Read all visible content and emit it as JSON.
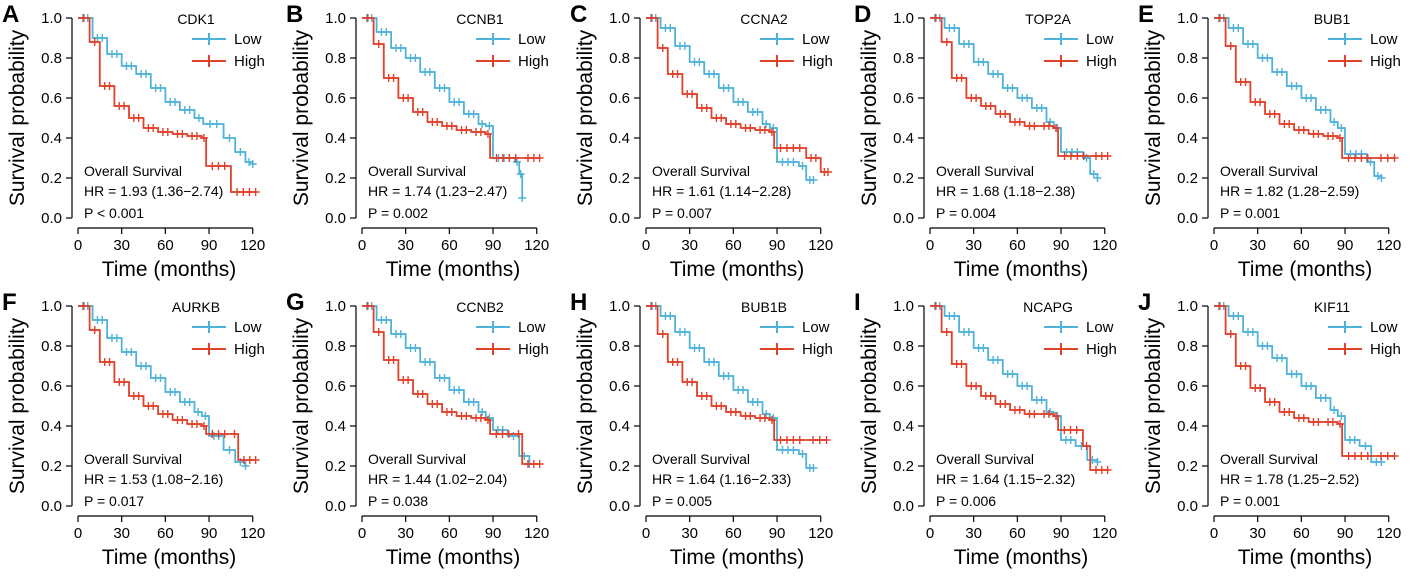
{
  "chart_data": {
    "type": "line",
    "shared": {
      "xlabel": "Time (months)",
      "ylabel": "Survival probability",
      "xticks": [
        0,
        30,
        60,
        90,
        120
      ],
      "yticks": [
        0.0,
        0.2,
        0.4,
        0.6,
        0.8,
        1.0
      ],
      "ytick_labels": [
        "0.0",
        "0.2",
        "0.4",
        "0.6",
        "0.8",
        "1.0"
      ],
      "xlim": [
        0,
        125
      ],
      "ylim": [
        0,
        1.0
      ],
      "legend": [
        "Low",
        "High"
      ],
      "colors": {
        "Low": "#4fb3d9",
        "High": "#e0412b"
      },
      "annotation_title": "Overall Survival"
    },
    "panels": [
      {
        "letter": "A",
        "gene": "CDK1",
        "hr": "HR = 1.93 (1.36−2.74)",
        "p": "P < 0.001",
        "low": [
          [
            0,
            1
          ],
          [
            10,
            0.9
          ],
          [
            20,
            0.82
          ],
          [
            30,
            0.76
          ],
          [
            40,
            0.72
          ],
          [
            50,
            0.65
          ],
          [
            60,
            0.58
          ],
          [
            70,
            0.54
          ],
          [
            80,
            0.5
          ],
          [
            86,
            0.47
          ],
          [
            100,
            0.4
          ],
          [
            108,
            0.33
          ],
          [
            115,
            0.28
          ],
          [
            120,
            0.27
          ]
        ],
        "high": [
          [
            0,
            1
          ],
          [
            8,
            0.88
          ],
          [
            15,
            0.66
          ],
          [
            25,
            0.56
          ],
          [
            35,
            0.5
          ],
          [
            45,
            0.45
          ],
          [
            55,
            0.43
          ],
          [
            65,
            0.42
          ],
          [
            75,
            0.41
          ],
          [
            85,
            0.4
          ],
          [
            88,
            0.26
          ],
          [
            105,
            0.13
          ],
          [
            122,
            0.13
          ]
        ]
      },
      {
        "letter": "B",
        "gene": "CCNB1",
        "hr": "HR = 1.74 (1.23−2.47)",
        "p": "P = 0.002",
        "low": [
          [
            0,
            1
          ],
          [
            10,
            0.93
          ],
          [
            20,
            0.85
          ],
          [
            30,
            0.8
          ],
          [
            40,
            0.73
          ],
          [
            50,
            0.65
          ],
          [
            60,
            0.58
          ],
          [
            70,
            0.52
          ],
          [
            80,
            0.47
          ],
          [
            85,
            0.46
          ],
          [
            90,
            0.3
          ],
          [
            105,
            0.28
          ],
          [
            108,
            0.22
          ],
          [
            110,
            0.1
          ]
        ],
        "high": [
          [
            0,
            1
          ],
          [
            8,
            0.87
          ],
          [
            15,
            0.7
          ],
          [
            25,
            0.6
          ],
          [
            35,
            0.53
          ],
          [
            45,
            0.48
          ],
          [
            55,
            0.46
          ],
          [
            65,
            0.44
          ],
          [
            75,
            0.43
          ],
          [
            85,
            0.42
          ],
          [
            88,
            0.3
          ],
          [
            110,
            0.3
          ],
          [
            122,
            0.3
          ]
        ]
      },
      {
        "letter": "C",
        "gene": "CCNA2",
        "hr": "HR = 1.61 (1.14−2.28)",
        "p": "P = 0.007",
        "low": [
          [
            0,
            1
          ],
          [
            10,
            0.95
          ],
          [
            20,
            0.86
          ],
          [
            30,
            0.78
          ],
          [
            40,
            0.72
          ],
          [
            50,
            0.65
          ],
          [
            60,
            0.58
          ],
          [
            70,
            0.53
          ],
          [
            80,
            0.47
          ],
          [
            85,
            0.45
          ],
          [
            90,
            0.28
          ],
          [
            105,
            0.26
          ],
          [
            110,
            0.19
          ],
          [
            115,
            0.19
          ]
        ],
        "high": [
          [
            0,
            1
          ],
          [
            8,
            0.85
          ],
          [
            15,
            0.72
          ],
          [
            25,
            0.62
          ],
          [
            35,
            0.55
          ],
          [
            45,
            0.5
          ],
          [
            55,
            0.47
          ],
          [
            65,
            0.45
          ],
          [
            75,
            0.44
          ],
          [
            85,
            0.43
          ],
          [
            88,
            0.35
          ],
          [
            110,
            0.3
          ],
          [
            120,
            0.23
          ],
          [
            125,
            0.23
          ]
        ]
      },
      {
        "letter": "D",
        "gene": "TOP2A",
        "hr": "HR = 1.68 (1.18−2.38)",
        "p": "P = 0.004",
        "low": [
          [
            0,
            1
          ],
          [
            10,
            0.95
          ],
          [
            20,
            0.87
          ],
          [
            30,
            0.78
          ],
          [
            40,
            0.72
          ],
          [
            50,
            0.65
          ],
          [
            60,
            0.6
          ],
          [
            70,
            0.55
          ],
          [
            80,
            0.48
          ],
          [
            85,
            0.45
          ],
          [
            90,
            0.33
          ],
          [
            105,
            0.3
          ],
          [
            110,
            0.22
          ],
          [
            115,
            0.2
          ]
        ],
        "high": [
          [
            0,
            1
          ],
          [
            8,
            0.88
          ],
          [
            15,
            0.7
          ],
          [
            25,
            0.6
          ],
          [
            35,
            0.56
          ],
          [
            45,
            0.52
          ],
          [
            55,
            0.48
          ],
          [
            65,
            0.46
          ],
          [
            75,
            0.46
          ],
          [
            85,
            0.45
          ],
          [
            88,
            0.31
          ],
          [
            110,
            0.31
          ],
          [
            122,
            0.31
          ]
        ]
      },
      {
        "letter": "E",
        "gene": "BUB1",
        "hr": "HR = 1.82 (1.28−2.59)",
        "p": "P = 0.001",
        "low": [
          [
            0,
            1
          ],
          [
            10,
            0.95
          ],
          [
            20,
            0.87
          ],
          [
            30,
            0.8
          ],
          [
            40,
            0.73
          ],
          [
            50,
            0.66
          ],
          [
            60,
            0.6
          ],
          [
            70,
            0.54
          ],
          [
            80,
            0.48
          ],
          [
            85,
            0.45
          ],
          [
            90,
            0.32
          ],
          [
            105,
            0.28
          ],
          [
            110,
            0.21
          ],
          [
            115,
            0.2
          ]
        ],
        "high": [
          [
            0,
            1
          ],
          [
            8,
            0.86
          ],
          [
            15,
            0.68
          ],
          [
            25,
            0.58
          ],
          [
            35,
            0.52
          ],
          [
            45,
            0.47
          ],
          [
            55,
            0.44
          ],
          [
            65,
            0.42
          ],
          [
            75,
            0.41
          ],
          [
            85,
            0.4
          ],
          [
            88,
            0.3
          ],
          [
            110,
            0.3
          ],
          [
            124,
            0.3
          ]
        ]
      },
      {
        "letter": "F",
        "gene": "AURKB",
        "hr": "HR = 1.53 (1.08−2.16)",
        "p": "P = 0.017",
        "low": [
          [
            0,
            1
          ],
          [
            10,
            0.93
          ],
          [
            20,
            0.84
          ],
          [
            30,
            0.77
          ],
          [
            40,
            0.7
          ],
          [
            50,
            0.64
          ],
          [
            60,
            0.57
          ],
          [
            70,
            0.52
          ],
          [
            80,
            0.47
          ],
          [
            85,
            0.45
          ],
          [
            90,
            0.35
          ],
          [
            100,
            0.28
          ],
          [
            108,
            0.22
          ],
          [
            115,
            0.2
          ]
        ],
        "high": [
          [
            0,
            1
          ],
          [
            8,
            0.88
          ],
          [
            15,
            0.72
          ],
          [
            25,
            0.62
          ],
          [
            35,
            0.55
          ],
          [
            45,
            0.5
          ],
          [
            55,
            0.46
          ],
          [
            65,
            0.43
          ],
          [
            75,
            0.41
          ],
          [
            85,
            0.4
          ],
          [
            88,
            0.36
          ],
          [
            105,
            0.36
          ],
          [
            110,
            0.23
          ],
          [
            122,
            0.23
          ]
        ]
      },
      {
        "letter": "G",
        "gene": "CCNB2",
        "hr": "HR = 1.44 (1.02−2.04)",
        "p": "P = 0.038",
        "low": [
          [
            0,
            1
          ],
          [
            10,
            0.93
          ],
          [
            20,
            0.86
          ],
          [
            30,
            0.79
          ],
          [
            40,
            0.72
          ],
          [
            50,
            0.64
          ],
          [
            60,
            0.58
          ],
          [
            70,
            0.52
          ],
          [
            80,
            0.47
          ],
          [
            85,
            0.44
          ],
          [
            90,
            0.38
          ],
          [
            100,
            0.35
          ],
          [
            108,
            0.25
          ],
          [
            115,
            0.21
          ]
        ],
        "high": [
          [
            0,
            1
          ],
          [
            8,
            0.87
          ],
          [
            15,
            0.73
          ],
          [
            25,
            0.63
          ],
          [
            35,
            0.56
          ],
          [
            45,
            0.51
          ],
          [
            55,
            0.47
          ],
          [
            65,
            0.45
          ],
          [
            75,
            0.44
          ],
          [
            85,
            0.43
          ],
          [
            88,
            0.36
          ],
          [
            105,
            0.36
          ],
          [
            110,
            0.21
          ],
          [
            122,
            0.21
          ]
        ]
      },
      {
        "letter": "H",
        "gene": "BUB1B",
        "hr": "HR = 1.64 (1.16−2.33)",
        "p": "P = 0.005",
        "low": [
          [
            0,
            1
          ],
          [
            10,
            0.95
          ],
          [
            20,
            0.87
          ],
          [
            30,
            0.79
          ],
          [
            40,
            0.72
          ],
          [
            50,
            0.65
          ],
          [
            60,
            0.58
          ],
          [
            70,
            0.52
          ],
          [
            80,
            0.46
          ],
          [
            85,
            0.44
          ],
          [
            90,
            0.28
          ],
          [
            105,
            0.26
          ],
          [
            110,
            0.19
          ],
          [
            115,
            0.19
          ]
        ],
        "high": [
          [
            0,
            1
          ],
          [
            8,
            0.86
          ],
          [
            15,
            0.72
          ],
          [
            25,
            0.62
          ],
          [
            35,
            0.55
          ],
          [
            45,
            0.5
          ],
          [
            55,
            0.47
          ],
          [
            65,
            0.45
          ],
          [
            75,
            0.44
          ],
          [
            85,
            0.43
          ],
          [
            88,
            0.33
          ],
          [
            110,
            0.33
          ],
          [
            124,
            0.33
          ]
        ]
      },
      {
        "letter": "I",
        "gene": "NCAPG",
        "hr": "HR = 1.64 (1.15−2.32)",
        "p": "P = 0.006",
        "low": [
          [
            0,
            1
          ],
          [
            10,
            0.95
          ],
          [
            20,
            0.87
          ],
          [
            30,
            0.79
          ],
          [
            40,
            0.73
          ],
          [
            50,
            0.66
          ],
          [
            60,
            0.6
          ],
          [
            70,
            0.53
          ],
          [
            80,
            0.47
          ],
          [
            85,
            0.45
          ],
          [
            90,
            0.33
          ],
          [
            100,
            0.3
          ],
          [
            108,
            0.23
          ],
          [
            115,
            0.22
          ]
        ],
        "high": [
          [
            0,
            1
          ],
          [
            8,
            0.87
          ],
          [
            15,
            0.71
          ],
          [
            25,
            0.6
          ],
          [
            35,
            0.55
          ],
          [
            45,
            0.51
          ],
          [
            55,
            0.48
          ],
          [
            65,
            0.46
          ],
          [
            75,
            0.46
          ],
          [
            85,
            0.45
          ],
          [
            88,
            0.38
          ],
          [
            105,
            0.3
          ],
          [
            110,
            0.18
          ],
          [
            122,
            0.18
          ]
        ]
      },
      {
        "letter": "J",
        "gene": "KIF11",
        "hr": "HR = 1.78 (1.25−2.52)",
        "p": "P = 0.001",
        "low": [
          [
            0,
            1
          ],
          [
            10,
            0.95
          ],
          [
            20,
            0.87
          ],
          [
            30,
            0.8
          ],
          [
            40,
            0.74
          ],
          [
            50,
            0.66
          ],
          [
            60,
            0.6
          ],
          [
            70,
            0.54
          ],
          [
            80,
            0.48
          ],
          [
            85,
            0.45
          ],
          [
            90,
            0.33
          ],
          [
            100,
            0.3
          ],
          [
            108,
            0.22
          ],
          [
            115,
            0.22
          ]
        ],
        "high": [
          [
            0,
            1
          ],
          [
            8,
            0.86
          ],
          [
            15,
            0.7
          ],
          [
            25,
            0.59
          ],
          [
            35,
            0.52
          ],
          [
            45,
            0.47
          ],
          [
            55,
            0.44
          ],
          [
            65,
            0.42
          ],
          [
            75,
            0.42
          ],
          [
            85,
            0.41
          ],
          [
            88,
            0.25
          ],
          [
            110,
            0.25
          ],
          [
            124,
            0.25
          ]
        ]
      }
    ]
  }
}
